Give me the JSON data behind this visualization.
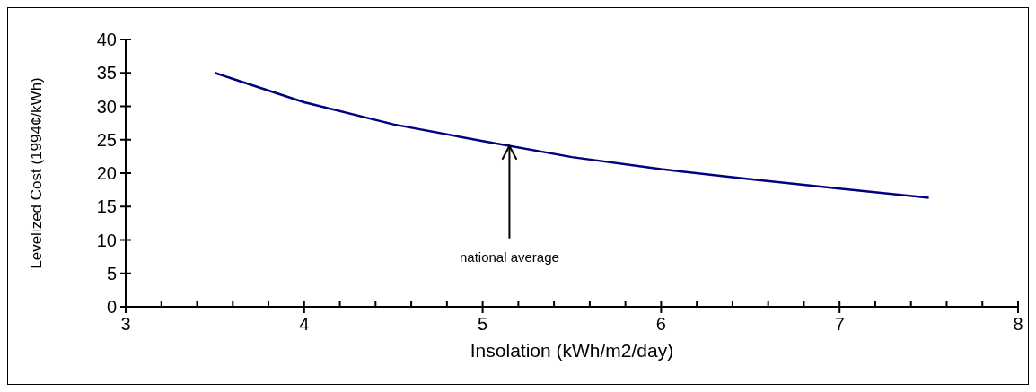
{
  "chart_data": {
    "type": "line",
    "xlabel": "Insolation (kWh/m2/day)",
    "ylabel": "Levelized Cost (1994¢/kWh)",
    "x": [
      3.5,
      4,
      4.5,
      5,
      5.5,
      6,
      6.5,
      7,
      7.5
    ],
    "series": [
      {
        "color": "#000080",
        "values": [
          35,
          30.6,
          27.3,
          24.8,
          22.4,
          20.6,
          19.1,
          17.7,
          16.3
        ]
      }
    ],
    "xlim": [
      3,
      8
    ],
    "xticks": [
      3,
      {
        "value": 3.2,
        "label": null
      },
      {
        "value": 3.4,
        "label": null
      },
      {
        "value": 3.6,
        "label": null
      },
      {
        "value": 3.8,
        "label": null
      },
      4,
      {
        "value": 4.2,
        "label": null
      },
      {
        "value": 4.4,
        "label": null
      },
      {
        "value": 4.6,
        "label": null
      },
      {
        "value": 4.8,
        "label": null
      },
      5,
      {
        "value": 5.2,
        "label": null
      },
      {
        "value": 5.4,
        "label": null
      },
      {
        "value": 5.6,
        "label": null
      },
      {
        "value": 5.8,
        "label": null
      },
      6,
      {
        "value": 6.2,
        "label": null
      },
      {
        "value": 6.4,
        "label": null
      },
      {
        "value": 6.6,
        "label": null
      },
      {
        "value": 6.8,
        "label": null
      },
      7,
      {
        "value": 7.2,
        "label": null
      },
      {
        "value": 7.4,
        "label": null
      },
      {
        "value": 7.6,
        "label": null
      },
      {
        "value": 7.8,
        "label": null
      },
      8
    ],
    "ylim": [
      0,
      40
    ],
    "yticks": [
      0,
      5,
      10,
      15,
      20,
      25,
      30,
      35,
      40
    ],
    "grid": false,
    "legend": false,
    "marker": "none",
    "line_style": "solid",
    "annotations": [
      {
        "text": "national average",
        "x": 5.15,
        "y": 24.2
      }
    ]
  }
}
